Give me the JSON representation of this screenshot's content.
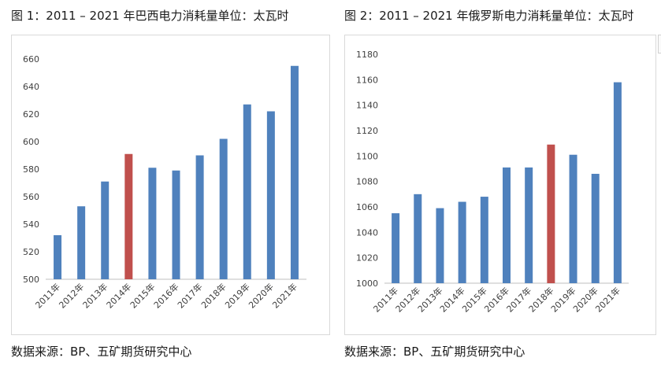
{
  "chart_data": [
    {
      "type": "bar",
      "title": "图 1：2011 – 2021 年巴西电力消耗量单位：太瓦时",
      "source": "数据来源：BP、五矿期货研究中心",
      "categories": [
        "2011年",
        "2012年",
        "2013年",
        "2014年",
        "2015年",
        "2016年",
        "2017年",
        "2018年",
        "2019年",
        "2020年",
        "2021年"
      ],
      "values": [
        532,
        553,
        571,
        591,
        581,
        579,
        590,
        602,
        627,
        622,
        655
      ],
      "highlight_index": 3,
      "ylim": [
        500,
        660
      ],
      "yticks": [
        500,
        520,
        540,
        560,
        580,
        600,
        620,
        640,
        660
      ],
      "grid": false,
      "xlabel": "",
      "ylabel": ""
    },
    {
      "type": "bar",
      "title": "图 2：2011 – 2021 年俄罗斯电力消耗量单位：太瓦时",
      "source": "数据来源：BP、五矿期货研究中心",
      "categories": [
        "2011年",
        "2012年",
        "2013年",
        "2014年",
        "2015年",
        "2016年",
        "2017年",
        "2018年",
        "2019年",
        "2020年",
        "2021年"
      ],
      "values": [
        1055,
        1070,
        1059,
        1064,
        1068,
        1091,
        1091,
        1109,
        1101,
        1086,
        1158
      ],
      "highlight_index": 7,
      "ylim": [
        1000,
        1180
      ],
      "yticks": [
        1000,
        1020,
        1040,
        1060,
        1080,
        1100,
        1120,
        1140,
        1160,
        1180
      ],
      "grid": false,
      "xlabel": "",
      "ylabel": ""
    }
  ],
  "colors": {
    "bar": "#4f81bd",
    "highlight": "#c0504d",
    "axis": "#bfbfbf",
    "border": "#d9d9d9"
  }
}
